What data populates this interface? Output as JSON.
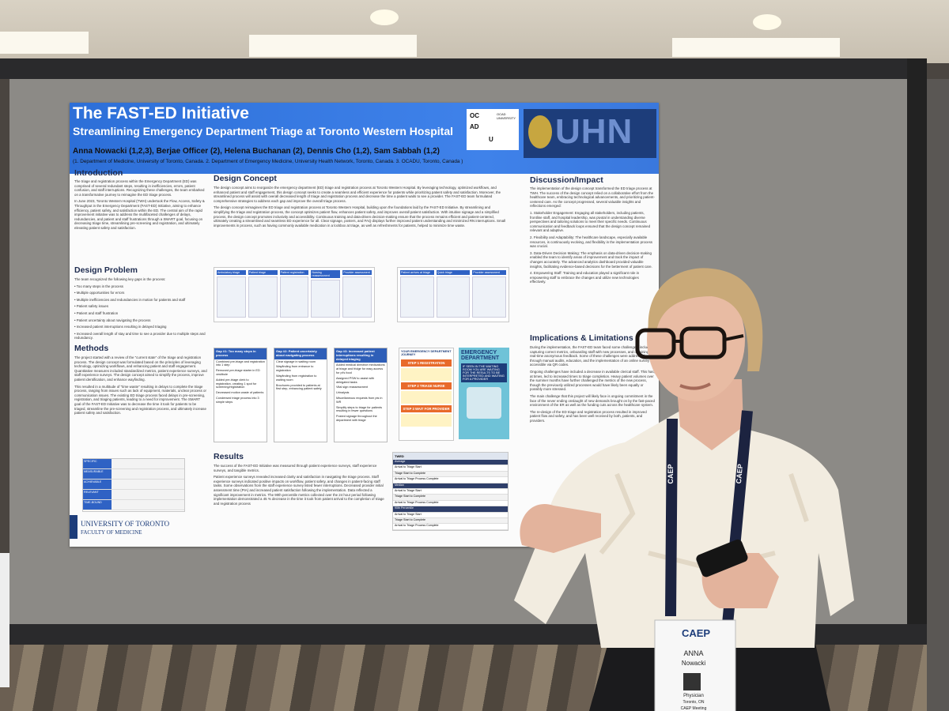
{
  "poster": {
    "title": "The FAST-ED Initiative",
    "subtitle": "Streamlining Emergency Department Triage at Toronto Western Hospital",
    "authors": "Anna Nowacki (1,2,3), Berjae Officer (2), Helena Buchanan (2), Dennis Cho (1,2), Sam Sabbah (1,2)",
    "affiliations": "(1. Department of Medicine, University of Toronto, Canada. 2. Department of Emergency Medicine, University Health Network, Toronto, Canada. 3. OCADU, Toronto, Canada )",
    "logos": {
      "ocad": [
        "OC",
        "AD",
        "U"
      ],
      "ocad_name": "OCAD UNIVERSITY",
      "uhn": "UHN"
    },
    "introduction": {
      "heading": "Introduction",
      "paragraphs": [
        "The triage and registration process within the Emergency Department (ED) was comprised of several redundant steps, resulting in inefficiencies, errors, patient confusion, and staff interruptions. Recognizing these challenges, the team embarked on a transformative journey to reimagine the ED triage process.",
        "In June 2023, Toronto Western Hospital (TWH) undertook the Flow, Access, Safety & Throughput in the Emergency Department (FAST-ED) Initiative, aiming to enhance efficiency, patient safety, and satisfaction within the ED. The central aim of the rapid improvement initiative was to address the multifaceted challenges of delays, redundancies, and patient and staff frustrations through a SMART goal, focusing on decreasing triage time, streamlining pre-screening and registration, and ultimately elevating patient safety and satisfaction."
      ]
    },
    "design_problem": {
      "heading": "Design Problem",
      "paragraphs": [
        "The team recognized the following key gaps in the process:",
        "• Too many steps in the process",
        "• Multiple opportunities for errors",
        "• Multiple inefficiencies and redundancies in motion for patients and staff",
        "• Patient safety issues",
        "• Patient and staff frustration",
        "• Patient uncertainty about navigating the process",
        "• Increased patient interruptions resulting in delayed triaging",
        "• Increased overall length of stay and time to see a provider due to multiple steps and redundancy."
      ]
    },
    "methods": {
      "heading": "Methods",
      "paragraphs": [
        "The project started with a review of the \"current state\" of the triage and registration process. The design concept was formulated based on the principles of leveraging technology, optimizing workflows, and enhancing patient and staff engagement. Quantitative measures included standardized metrics, patient experience surveys, and staff experience surveys. The design concept aimed to simplify the process, improve patient identification, and enhance wayfinding.",
        "This resulted in a multitude of \"time waste\" resulting in delays to complete the triage process, ranging from issues such as lack of equipment, materials, unclear process or communication issues. The existing ED triage process faced delays in pre-screening, registration, and triaging patients, leading to a need for improvement. The SMART goal of the FAST-ED Initiative was to decrease the time it took for patients to be triaged, streamline the pre-screening and registration process, and ultimately increase patient safety and satisfaction."
      ]
    },
    "smart": [
      "SPECIFIC",
      "MEASURABLE",
      "ACHIEVABLE",
      "RELEVANT",
      "TIME-BOUND"
    ],
    "design_concept": {
      "heading": "Design Concept",
      "paragraphs": [
        "The design concept aims to reorganize the emergency department (ED) triage and registration process at Toronto Western Hospital. By leveraging technology, optimized workflows, and enhanced patient and staff engagement, this design concept seeks to create a seamless and efficient experience for patients while prioritizing patient safety and satisfaction. Moreover, the streamlined process will assist with overall decreased length of triage and registration process and decrease the time a patient waits to see a provider. The FAST-ED team formulated comprehensive strategies to address each gap and improve the overall triage process.",
        "The design concept reimagines the ED triage and registration process at Toronto Western Hospital, building upon the foundations laid by the FAST-ED Initiative. By streamlining and simplifying the triage and registration process, the concept optimizes patient flow, enhances patient safety, and improves overall patient satisfaction. With intuitive signage and a simplified process, the design concept promotes inclusivity and accessibility. Continuous training and data-driven decision-making ensure that the process remains efficient and patient-centered, ultimately creating a streamlined and seamless ED experience for all. Clear signage, posters, and FAQ displays further improved patient understanding and minimized RN interruptions. Small improvements in process, such as having commonly available medication in a lockbox at triage, as well as refreshments for patients, helped to minimize time waste."
      ]
    },
    "flow_old": [
      "Ambulatory triage",
      "Patient triage",
      "Patient registration",
      "Nursing reassessment",
      "Provider assessment"
    ],
    "flow_new": [
      "Patient arrives at triage",
      "Quick triage",
      "Provider assessment"
    ],
    "gaps": [
      {
        "title": "Gap #1: Too many steps in process",
        "items": [
          "Combined pre-triage and registration into 1 step",
          "Removed pre-triage starter in ED vestibule",
          "Added pre-triage clerk to registration, creating 1 spot for screening/registration",
          "Decreased motion waste of patients",
          "Condensed triage process into 3 simple steps"
        ]
      },
      {
        "title": "Gap #2: Patient uncertainty about navigating process",
        "items": [
          "Clear signage in waiting room",
          "Wayfinding from entrance to registration",
          "Wayfinding from registration to waiting room",
          "Brochures provided to patients at first step, enhancing patient safety"
        ]
      },
      {
        "title": "Gap #3: Increased patient interruptions resulting in delayed triaging",
        "items": [
          "Added medical directive medications at triage and fridge for easy access for pt's food",
          "Assigned PSW to assist with delegated tasks",
          "Vital sign reassessment",
          "Urinalysis",
          "Miscellaneous requests from pts in WR",
          "Simplify steps to triage for patients resulting in fewer questions",
          "Posted signage throughout the department with triage"
        ]
      }
    ],
    "journey": {
      "header": "YOUR EMERGENCY DEPARTMENT JOURNEY",
      "steps": [
        "STEP 1 REGISTRATION",
        "STEP 2 TRIAGE NURSE",
        "STEP 3 WAIT FOR PROVIDER"
      ]
    },
    "ed_poster": {
      "title": "EMERGENCY DEPARTMENT",
      "text": "IF SEEN IN THE WAITING ROOM YOU ARE WAITING FOR THE RESULTS TO BE INTERPRETED AND WAITING FOR A PROVIDER"
    },
    "results": {
      "heading": "Results",
      "paragraphs": [
        "The success of the FAST-ED Initiative was measured through patient experience surveys, staff experience surveys, and tangible metrics.",
        "Patient experience surveys revealed increased clarity and satisfaction in navigating the triage process. Staff experience surveys indicated positive impacts on workflow, patient safety, and changes in patient-facing staff tasks. Some observations from the staff experience survey listed fewer interruptions. Decreased provider initial assessment time (PIA) and increased patient satisfaction following the implementation. Data reflected a significant improvement in metrics. The 90th percentile metrics collected over the 24 hour period following implementation demonstrated a 45 % decrease in the time it took from patient arrival to the completion of triage and registration process"
      ]
    },
    "results_table": {
      "corner": "TWED",
      "rows": [
        "Average",
        "Arrival to Triage Start",
        "Triage Start to Complete",
        "Arrival to Triage Process Complete",
        "Median",
        "Arrival to Triage Start",
        "Triage Start to Complete",
        "Arrival to Triage Process Complete",
        "90th Percentile",
        "Arrival to Triage Start",
        "Triage Start to Complete",
        "Arrival to Triage Process Complete"
      ]
    },
    "discussion": {
      "heading": "Discussion/Impact",
      "paragraphs": [
        "The implementation of the design concept transformed the ED triage process at TWH. The success of the design concept relied on a collaborative effort from the healthcare team, embracing technological advancements, and prioritizing patient-centered care. As the concept progressed, several valuable insights and reflections emerged:",
        "1. Stakeholder Engagement: Engaging all stakeholders, including patients, frontline staff, and hospital leadership, was pivotal in understanding diverse perspectives and tailoring solutions to meet their specific needs. Continuous communication and feedback loops ensured that the design concept remained relevant and adaptive.",
        "2. Flexibility and Adaptability: The healthcare landscape, especially available resources, is continuously evolving, and flexibility in the implementation process was crucial.",
        "3. Data-Driven Decision Making: The emphasis on data-driven decision-making enabled the team to identify areas of improvement and track the impact of changes accurately. The advanced analytics dashboard provided valuable insights, facilitating evidence-based decisions for the betterment of patient care.",
        "4. Empowering Staff: Training and education played a significant role in empowering staff to embrace the changes and utilize new technologies effectively."
      ]
    },
    "implications": {
      "heading": "Implications & Limitations",
      "paragraphs": [
        "During the implementation, the FAST-ED team faced some challenges, including capturing correct metrics, onboarding staff with new processes, and obtaining real-time anonymous feedback. Some of these challenges were addressed through manual audits, education, and the implementation of an online survey accessible via QR codes.",
        "Ongoing challenges have included a decrease in available clerical staff. This has, at times, led to increased times to triage completion. Heavy patient volumes over the summer months have further challenged the metrics of the new process, though the previously utilized processes would have likely been equally or possibly more stressed.",
        "The main challenge that this project will likely face is ongoing commitment in the face of the never ending onslaught of new demands brought on by the fast-paced environment of the ER as well as the funding cuts across the healthcare system.",
        "The re-design of the ED triage and registration process resulted in improved patient flow and safety, and has been well received by both, patients, and providers."
      ]
    },
    "footer": [
      "UNIVERSITY OF TORONTO",
      "FACULTY OF MEDICINE"
    ]
  },
  "badge": {
    "org": "CAEP",
    "first_name": "ANNA",
    "last_name": "Nowacki",
    "role": "Physician",
    "city": "Toronto, ON",
    "event": "CAEP Meeting"
  },
  "lanyard": "CAEP"
}
